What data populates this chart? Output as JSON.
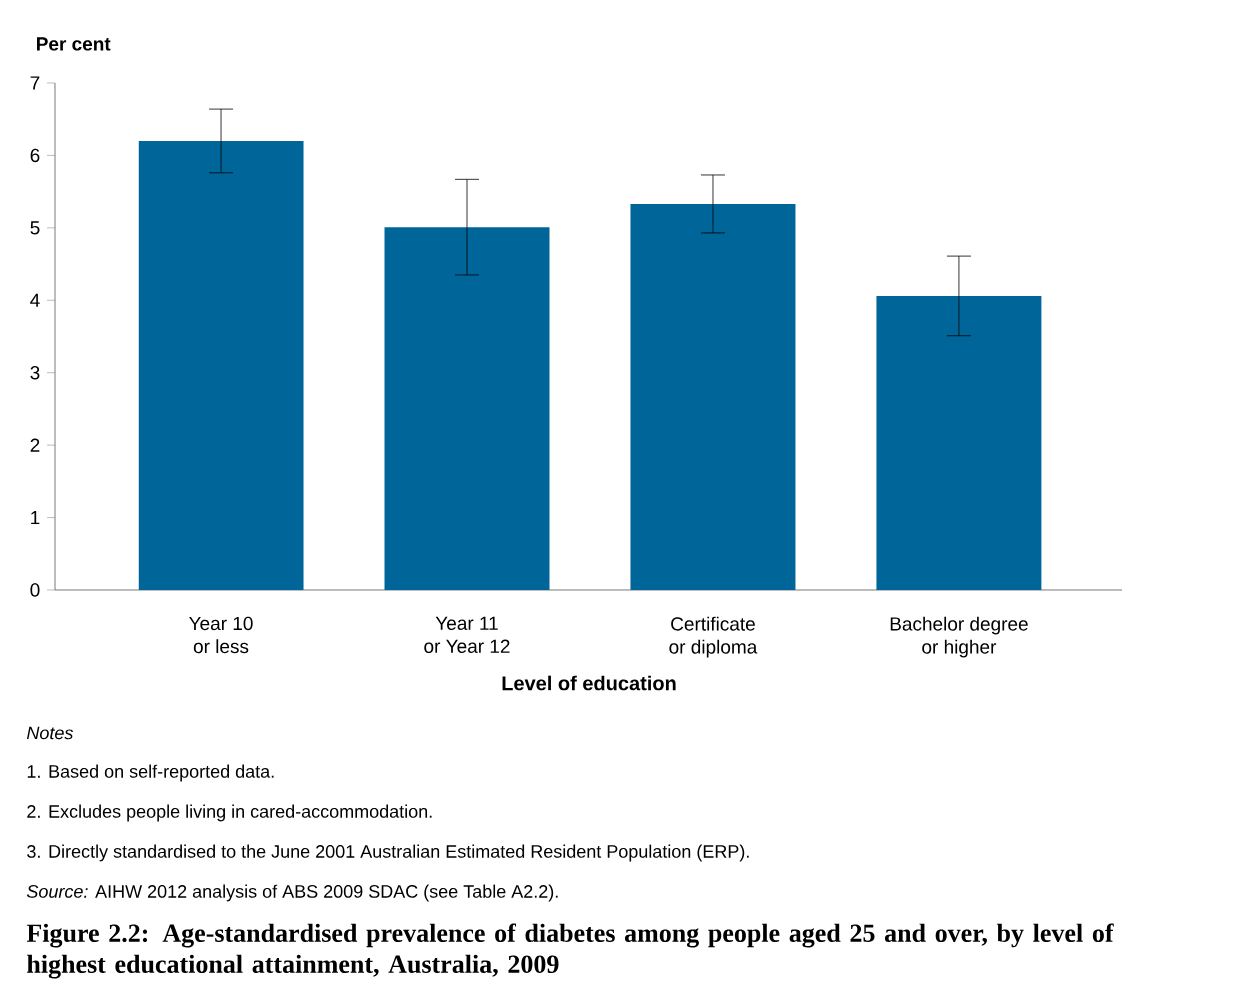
{
  "chart_data": {
    "type": "bar",
    "title": "Figure 2.2: Age-standardised prevalence of diabetes among people aged 25 and over, by level of highest educational attainment, Australia, 2009",
    "xlabel": "Level of education",
    "ylabel": "Per cent",
    "categories": [
      "Year 10 or less",
      "Year 11 or Year 12",
      "Certificate or diploma",
      "Bachelor degree or higher"
    ],
    "values": [
      6.2,
      5.01,
      5.33,
      4.06
    ],
    "errors": [
      [
        5.76,
        6.64
      ],
      [
        4.35,
        5.67
      ],
      [
        4.93,
        5.73
      ],
      [
        3.51,
        4.61
      ]
    ],
    "color": "#00669a",
    "ylim": [
      0,
      7
    ],
    "yticks": [
      0,
      1,
      2,
      3,
      4,
      5,
      6,
      7
    ],
    "grid": false,
    "annotations": [
      "Notes",
      "1. Based on self-reported data.",
      "2. Excludes people living in cared-accommodation.",
      "3. Directly standardised to the June 2001 Australian Estimated Resident Population (ERP).",
      "*Source:* AIHW 2012 analysis of ABS 2009 SDAC (see Table A2.2)."
    ]
  }
}
